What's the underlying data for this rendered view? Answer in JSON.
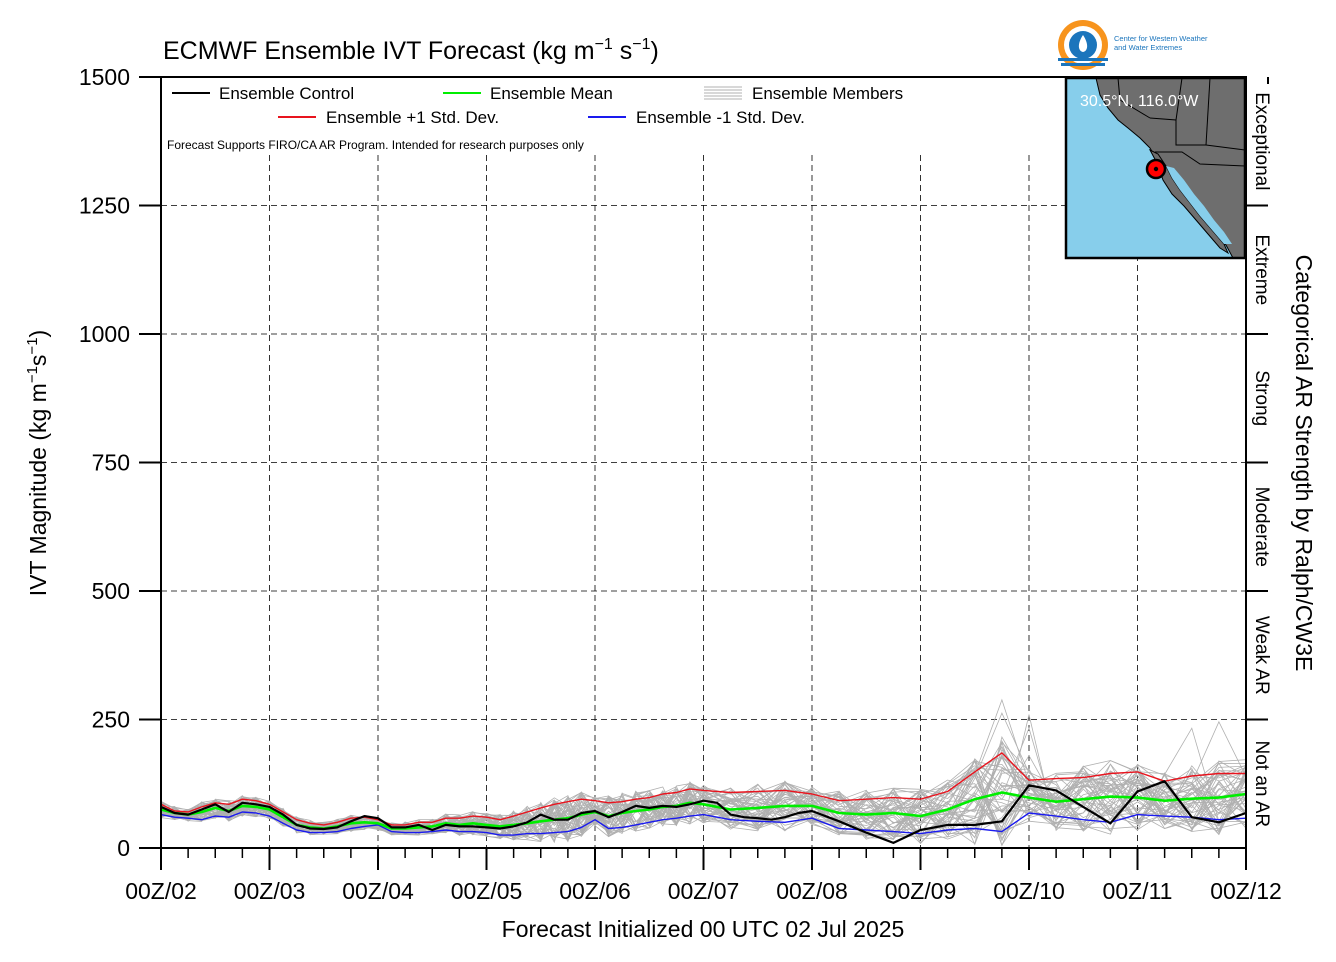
{
  "title": "ECMWF Ensemble IVT Forecast (kg m",
  "title_unit_a": "−1",
  "title_unit_mid": " s",
  "title_unit_b": "−1",
  "title_close": ")",
  "logo": {
    "line1": "Center for Western Weather",
    "line2": "and Water Extremes",
    "brand_colors": {
      "orange": "#f7941d",
      "blue": "#1b75bc"
    }
  },
  "inset_map": {
    "location_label": "30.5°N, 116.0°W",
    "colors": {
      "ocean": "#87ceeb",
      "land": "#6e6e6e",
      "marker": "#ff0000"
    }
  },
  "disclaimer": "Forecast Supports FIRO/CA AR Program. Intended for research purposes only",
  "legend": {
    "control": "Ensemble Control",
    "mean": "Ensemble Mean",
    "members": "Ensemble Members",
    "plus": "Ensemble +1 Std. Dev.",
    "minus": "Ensemble -1 Std. Dev."
  },
  "colors": {
    "control": "#000000",
    "mean": "#00ee00",
    "members": "#b0b0b0",
    "plus": "#e8141e",
    "minus": "#1a1aee"
  },
  "right_axis_title": "Categorical AR Strength by Ralph/CW3E",
  "categories": [
    "Exceptional",
    "Extreme",
    "Strong",
    "Moderate",
    "Weak AR",
    "Not an AR"
  ],
  "chart_data": {
    "type": "line",
    "title": "ECMWF Ensemble IVT Forecast (kg m−1 s−1)",
    "xlabel": "Forecast Initialized 00 UTC 02 Jul 2025",
    "ylabel": "IVT Magnitude (kg m−1s−1)",
    "ylim": [
      0,
      1500
    ],
    "yticks": [
      0,
      250,
      500,
      750,
      1000,
      1250,
      1500
    ],
    "x_unit": "forecast day (July 2025, 00Z)",
    "xlim": [
      2,
      12
    ],
    "xtick_labels": [
      "00Z/02",
      "00Z/03",
      "00Z/04",
      "00Z/05",
      "00Z/06",
      "00Z/07",
      "00Z/08",
      "00Z/09",
      "00Z/10",
      "00Z/11",
      "00Z/12"
    ],
    "grid": true,
    "category_bands": [
      {
        "label": "Not an AR",
        "range": [
          0,
          250
        ]
      },
      {
        "label": "Weak AR",
        "range": [
          250,
          500
        ]
      },
      {
        "label": "Moderate",
        "range": [
          500,
          750
        ]
      },
      {
        "label": "Strong",
        "range": [
          750,
          1000
        ]
      },
      {
        "label": "Extreme",
        "range": [
          1000,
          1250
        ]
      },
      {
        "label": "Exceptional",
        "range": [
          1250,
          1500
        ]
      }
    ],
    "series": [
      {
        "name": "Ensemble +1 Std. Dev.",
        "x": [
          2,
          2.125,
          2.25,
          2.375,
          2.5,
          2.625,
          2.75,
          2.875,
          3,
          3.125,
          3.25,
          3.375,
          3.5,
          3.625,
          3.75,
          3.875,
          4,
          4.125,
          4.25,
          4.375,
          4.5,
          4.625,
          4.75,
          4.875,
          5,
          5.125,
          5.25,
          5.375,
          5.5,
          5.625,
          5.75,
          5.875,
          6,
          6.125,
          6.25,
          6.375,
          6.5,
          6.625,
          6.75,
          6.875,
          7,
          7.25,
          7.5,
          7.75,
          8,
          8.25,
          8.5,
          8.75,
          9,
          9.25,
          9.5,
          9.75,
          10,
          10.25,
          10.5,
          10.75,
          11,
          11.25,
          11.5,
          11.75,
          12
        ],
        "values": [
          85,
          72,
          70,
          80,
          88,
          85,
          95,
          92,
          85,
          70,
          55,
          48,
          45,
          50,
          58,
          60,
          55,
          45,
          45,
          50,
          50,
          58,
          58,
          62,
          60,
          55,
          62,
          70,
          78,
          85,
          90,
          95,
          92,
          88,
          90,
          95,
          98,
          105,
          108,
          115,
          112,
          108,
          110,
          112,
          105,
          92,
          95,
          98,
          95,
          110,
          148,
          185,
          132,
          135,
          137,
          145,
          148,
          130,
          140,
          145,
          145
        ]
      },
      {
        "name": "Ensemble Mean",
        "x": [
          2,
          2.125,
          2.25,
          2.375,
          2.5,
          2.625,
          2.75,
          2.875,
          3,
          3.125,
          3.25,
          3.375,
          3.5,
          3.625,
          3.75,
          3.875,
          4,
          4.125,
          4.25,
          4.375,
          4.5,
          4.625,
          4.75,
          4.875,
          5,
          5.125,
          5.25,
          5.375,
          5.5,
          5.625,
          5.75,
          5.875,
          6,
          6.125,
          6.25,
          6.375,
          6.5,
          6.625,
          6.75,
          6.875,
          7,
          7.25,
          7.5,
          7.75,
          8,
          8.25,
          8.5,
          8.75,
          9,
          9.25,
          9.5,
          9.75,
          10,
          10.25,
          10.5,
          10.75,
          11,
          11.25,
          11.5,
          11.75,
          12
        ],
        "values": [
          75,
          68,
          65,
          70,
          78,
          72,
          82,
          80,
          75,
          60,
          45,
          40,
          38,
          42,
          48,
          50,
          48,
          38,
          38,
          40,
          42,
          48,
          45,
          48,
          45,
          42,
          45,
          48,
          52,
          55,
          58,
          65,
          70,
          62,
          68,
          72,
          75,
          80,
          82,
          88,
          85,
          75,
          78,
          82,
          82,
          68,
          65,
          68,
          62,
          75,
          95,
          108,
          98,
          90,
          95,
          100,
          98,
          92,
          96,
          98,
          105
        ]
      },
      {
        "name": "Ensemble Control",
        "x": [
          2,
          2.125,
          2.25,
          2.375,
          2.5,
          2.625,
          2.75,
          2.875,
          3,
          3.125,
          3.25,
          3.375,
          3.5,
          3.625,
          3.75,
          3.875,
          4,
          4.125,
          4.25,
          4.375,
          4.5,
          4.625,
          4.75,
          4.875,
          5,
          5.125,
          5.25,
          5.375,
          5.5,
          5.625,
          5.75,
          5.875,
          6,
          6.125,
          6.25,
          6.375,
          6.5,
          6.625,
          6.75,
          6.875,
          7,
          7.125,
          7.25,
          7.375,
          7.5,
          7.625,
          7.75,
          7.875,
          8,
          8.25,
          8.5,
          8.75,
          9,
          9.25,
          9.5,
          9.75,
          10,
          10.25,
          10.5,
          10.75,
          11,
          11.25,
          11.5,
          11.75,
          12
        ],
        "values": [
          80,
          68,
          65,
          75,
          85,
          70,
          88,
          85,
          80,
          65,
          45,
          38,
          37,
          40,
          52,
          62,
          58,
          40,
          40,
          45,
          35,
          45,
          42,
          42,
          40,
          38,
          42,
          50,
          65,
          55,
          55,
          68,
          72,
          60,
          70,
          82,
          78,
          82,
          80,
          85,
          92,
          88,
          65,
          60,
          58,
          55,
          60,
          68,
          72,
          52,
          30,
          10,
          35,
          45,
          45,
          52,
          122,
          112,
          80,
          48,
          110,
          130,
          60,
          50,
          68
        ]
      },
      {
        "name": "Ensemble -1 Std. Dev.",
        "x": [
          2,
          2.125,
          2.25,
          2.375,
          2.5,
          2.625,
          2.75,
          2.875,
          3,
          3.125,
          3.25,
          3.375,
          3.5,
          3.625,
          3.75,
          3.875,
          4,
          4.125,
          4.25,
          4.375,
          4.5,
          4.625,
          4.75,
          4.875,
          5,
          5.125,
          5.25,
          5.375,
          5.5,
          5.625,
          5.75,
          5.875,
          6,
          6.125,
          6.25,
          6.375,
          6.5,
          6.625,
          6.75,
          6.875,
          7,
          7.25,
          7.5,
          7.75,
          8,
          8.25,
          8.5,
          8.75,
          9,
          9.25,
          9.5,
          9.75,
          10,
          10.25,
          10.5,
          10.75,
          11,
          11.25,
          11.5,
          11.75,
          12
        ],
        "values": [
          65,
          60,
          58,
          55,
          62,
          60,
          70,
          68,
          62,
          48,
          35,
          30,
          30,
          32,
          38,
          42,
          45,
          32,
          30,
          30,
          32,
          35,
          32,
          32,
          30,
          25,
          25,
          28,
          28,
          30,
          32,
          40,
          55,
          38,
          40,
          45,
          50,
          55,
          58,
          62,
          65,
          55,
          52,
          50,
          58,
          38,
          35,
          32,
          28,
          35,
          38,
          32,
          68,
          62,
          55,
          50,
          65,
          62,
          60,
          55,
          58
        ]
      }
    ],
    "members_note": "Ensemble Members (~50 thin gray traces) scatter around the mean, mostly between ~10 and ~150, peaking near ~310 at about day 9.75 and ~250 near day 11.75"
  }
}
